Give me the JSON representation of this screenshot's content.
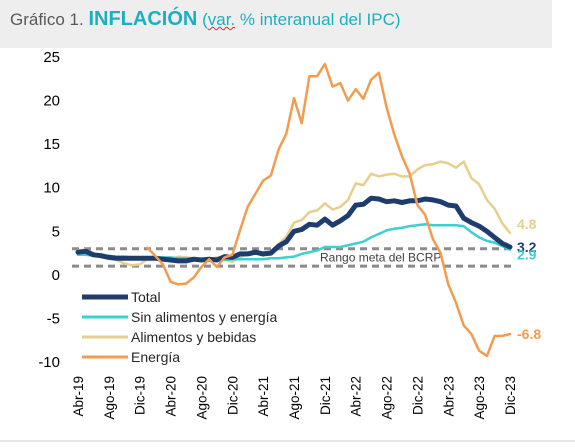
{
  "title": {
    "prefix": "Gráfico 1.",
    "main": "INFLACIÓN",
    "paren_open": "(",
    "abbr": "var.",
    "rest": " % interanual del IPC)"
  },
  "chart_data": {
    "type": "line",
    "ylim": [
      -10,
      25
    ],
    "yticks": [
      -10,
      -5,
      0,
      5,
      10,
      15,
      20,
      25
    ],
    "xticks": [
      "Abr-19",
      "Ago-19",
      "Dic-19",
      "Abr-20",
      "Ago-20",
      "Dic-20",
      "Abr-21",
      "Ago-21",
      "Dic-21",
      "Abr-22",
      "Ago-22",
      "Dic-22",
      "Abr-23",
      "Ago-23",
      "Dic-23"
    ],
    "x": [
      "Abr-19",
      "May-19",
      "Jun-19",
      "Jul-19",
      "Ago-19",
      "Sep-19",
      "Oct-19",
      "Nov-19",
      "Dic-19",
      "Ene-20",
      "Feb-20",
      "Mar-20",
      "Abr-20",
      "May-20",
      "Jun-20",
      "Jul-20",
      "Ago-20",
      "Sep-20",
      "Oct-20",
      "Nov-20",
      "Dic-20",
      "Ene-21",
      "Feb-21",
      "Mar-21",
      "Abr-21",
      "May-21",
      "Jun-21",
      "Jul-21",
      "Ago-21",
      "Sep-21",
      "Oct-21",
      "Nov-21",
      "Dic-21",
      "Ene-22",
      "Feb-22",
      "Mar-22",
      "Abr-22",
      "May-22",
      "Jun-22",
      "Jul-22",
      "Ago-22",
      "Sep-22",
      "Oct-22",
      "Nov-22",
      "Dic-22",
      "Ene-23",
      "Feb-23",
      "Mar-23",
      "Abr-23",
      "May-23",
      "Jun-23",
      "Jul-23",
      "Ago-23",
      "Sep-23",
      "Oct-23",
      "Nov-23",
      "Dic-23"
    ],
    "target_band": {
      "low": 1,
      "high": 3,
      "label": "Rango meta del BCRP"
    },
    "series": [
      {
        "name": "Total",
        "color": "#1f3c6e",
        "width": 5,
        "end_label": "3.2",
        "values": [
          2.6,
          2.7,
          2.3,
          2.2,
          2.0,
          1.9,
          1.9,
          1.9,
          1.9,
          1.9,
          1.9,
          1.8,
          1.7,
          1.6,
          1.6,
          1.8,
          1.7,
          1.8,
          1.7,
          2.1,
          2.0,
          2.4,
          2.4,
          2.6,
          2.4,
          2.5,
          3.3,
          3.8,
          5.0,
          5.2,
          5.8,
          5.7,
          6.4,
          5.7,
          6.2,
          6.8,
          8.0,
          8.1,
          8.8,
          8.7,
          8.4,
          8.5,
          8.3,
          8.5,
          8.5,
          8.7,
          8.6,
          8.4,
          8.0,
          7.9,
          6.5,
          6.0,
          5.6,
          5.0,
          4.3,
          3.6,
          3.2
        ]
      },
      {
        "name": "Sin alimentos y energía",
        "color": "#3ecfcf",
        "width": 2.5,
        "end_label": "2.9",
        "values": [
          2.3,
          2.3,
          2.2,
          2.2,
          2.2,
          2.1,
          2.1,
          2.0,
          2.0,
          2.0,
          2.0,
          2.0,
          2.0,
          1.9,
          1.9,
          1.9,
          1.8,
          1.8,
          1.8,
          1.7,
          1.8,
          1.8,
          1.8,
          1.8,
          1.8,
          1.9,
          1.9,
          2.0,
          2.1,
          2.4,
          2.6,
          2.8,
          3.2,
          3.2,
          3.2,
          3.4,
          3.6,
          3.8,
          4.3,
          4.7,
          5.1,
          5.3,
          5.4,
          5.6,
          5.7,
          5.8,
          5.7,
          5.7,
          5.7,
          5.7,
          5.6,
          4.9,
          4.3,
          3.9,
          3.7,
          3.3,
          2.9
        ]
      },
      {
        "name": "Alimentos y bebidas",
        "color": "#e6cf8c",
        "width": 2.5,
        "end_label": "4.8",
        "values": [
          2.8,
          2.9,
          2.3,
          2.0,
          1.9,
          1.7,
          1.3,
          1.1,
          1.2,
          1.8,
          1.8,
          1.9,
          1.7,
          2.1,
          2.0,
          1.9,
          1.8,
          1.8,
          2.0,
          1.8,
          1.5,
          2.0,
          2.4,
          2.5,
          2.2,
          2.6,
          3.5,
          4.4,
          6.0,
          6.3,
          7.2,
          7.4,
          8.2,
          7.5,
          7.8,
          8.6,
          10.5,
          10.3,
          11.6,
          11.3,
          11.5,
          11.6,
          11.3,
          11.3,
          12.1,
          12.6,
          12.7,
          13.0,
          12.8,
          12.3,
          13.0,
          11.1,
          10.4,
          8.6,
          7.6,
          5.9,
          4.8
        ]
      },
      {
        "name": "Energía",
        "color": "#f29c50",
        "width": 2.5,
        "end_label": "-6.8",
        "values": [
          null,
          null,
          null,
          null,
          null,
          null,
          null,
          null,
          null,
          3.1,
          2.2,
          1.2,
          -0.8,
          -1.1,
          -1.0,
          -0.3,
          0.9,
          1.8,
          0.9,
          2.0,
          2.3,
          5.1,
          7.8,
          9.3,
          10.8,
          11.4,
          14.4,
          16.2,
          20.3,
          17.4,
          22.8,
          22.8,
          24.2,
          21.6,
          22.0,
          20.0,
          21.3,
          20.2,
          22.4,
          23.2,
          19.2,
          16.1,
          13.6,
          11.6,
          8.0,
          6.9,
          4.1,
          2.5,
          -1.1,
          -3.2,
          -5.8,
          -6.8,
          -8.7,
          -9.3,
          -7.0,
          -7.0,
          -6.8
        ]
      }
    ]
  }
}
